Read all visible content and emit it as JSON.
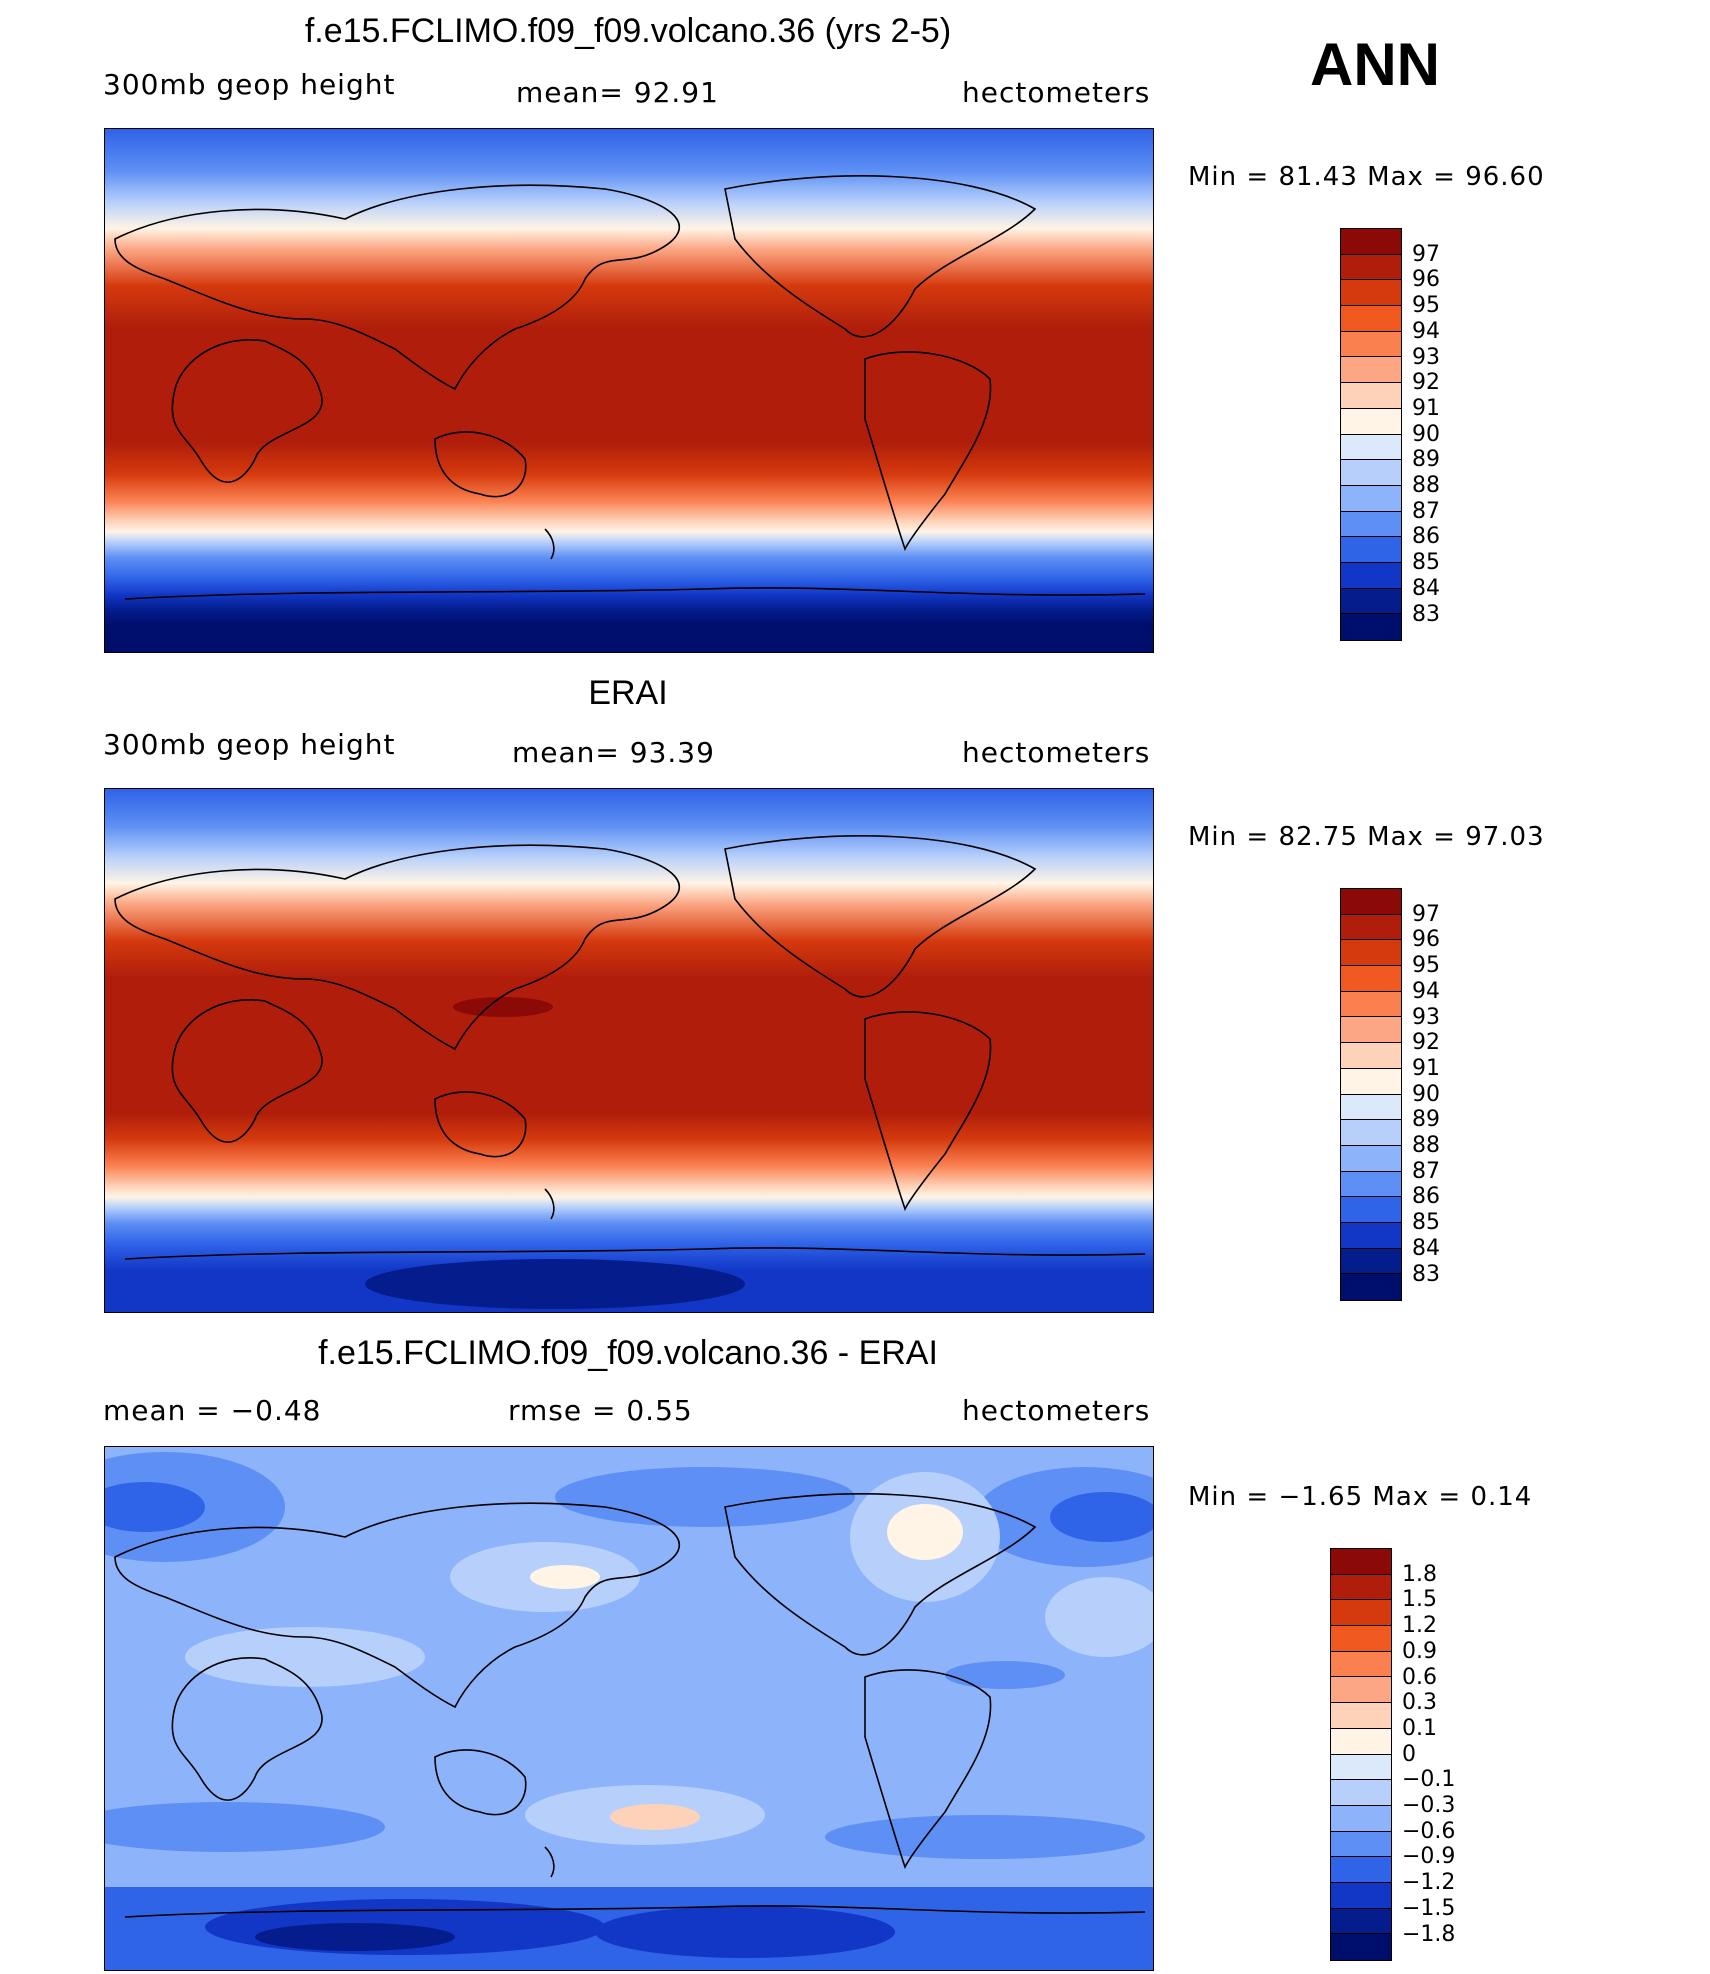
{
  "season": "ANN",
  "panels": [
    {
      "title": "f.e15.FCLIMO.f09_f09.volcano.36 (yrs 2-5)",
      "left_label": "300mb  geop  height",
      "mean_label": "mean=   92.91",
      "units": "hectometers",
      "minmax": "Min  =    81.43  Max  =    96.60",
      "colorbar": {
        "labels": [
          "97",
          "96",
          "95",
          "94",
          "93",
          "92",
          "91",
          "90",
          "89",
          "88",
          "87",
          "86",
          "85",
          "84",
          "83"
        ],
        "colors": [
          "#8b0a08",
          "#b01e0b",
          "#d53a0e",
          "#f05a20",
          "#fb8050",
          "#fca683",
          "#fdd2b8",
          "#fff4e6",
          "#dce9fb",
          "#b7d0fb",
          "#8db3fb",
          "#5d8ff4",
          "#2f63e8",
          "#1237c7",
          "#041c8c",
          "#000e6b"
        ]
      }
    },
    {
      "title": "ERAI",
      "left_label": "300mb  geop  height",
      "mean_label": "mean=   93.39",
      "units": "hectometers",
      "minmax": "Min  =    82.75  Max  =    97.03",
      "colorbar": {
        "labels": [
          "97",
          "96",
          "95",
          "94",
          "93",
          "92",
          "91",
          "90",
          "89",
          "88",
          "87",
          "86",
          "85",
          "84",
          "83"
        ],
        "colors": [
          "#8b0a08",
          "#b01e0b",
          "#d53a0e",
          "#f05a20",
          "#fb8050",
          "#fca683",
          "#fdd2b8",
          "#fff4e6",
          "#dce9fb",
          "#b7d0fb",
          "#8db3fb",
          "#5d8ff4",
          "#2f63e8",
          "#1237c7",
          "#041c8c",
          "#000e6b"
        ]
      }
    },
    {
      "title": "f.e15.FCLIMO.f09_f09.volcano.36 - ERAI",
      "left_label": "mean  =    −0.48",
      "mean_label": "rmse  =     0.55",
      "units": "hectometers",
      "minmax": "Min  =   −1.65  Max  =     0.14",
      "colorbar": {
        "labels": [
          "1.8",
          "1.5",
          "1.2",
          "0.9",
          "0.6",
          "0.3",
          "0.1",
          "0",
          "−0.1",
          "−0.3",
          "−0.6",
          "−0.9",
          "−1.2",
          "−1.5",
          "−1.8"
        ],
        "colors": [
          "#8b0a08",
          "#b01e0b",
          "#d53a0e",
          "#f05a20",
          "#fb8050",
          "#fca683",
          "#fdd2b8",
          "#fff4e6",
          "#dce9fb",
          "#b7d0fb",
          "#8db3fb",
          "#5d8ff4",
          "#2f63e8",
          "#1237c7",
          "#041c8c",
          "#000e6b"
        ]
      }
    }
  ]
}
